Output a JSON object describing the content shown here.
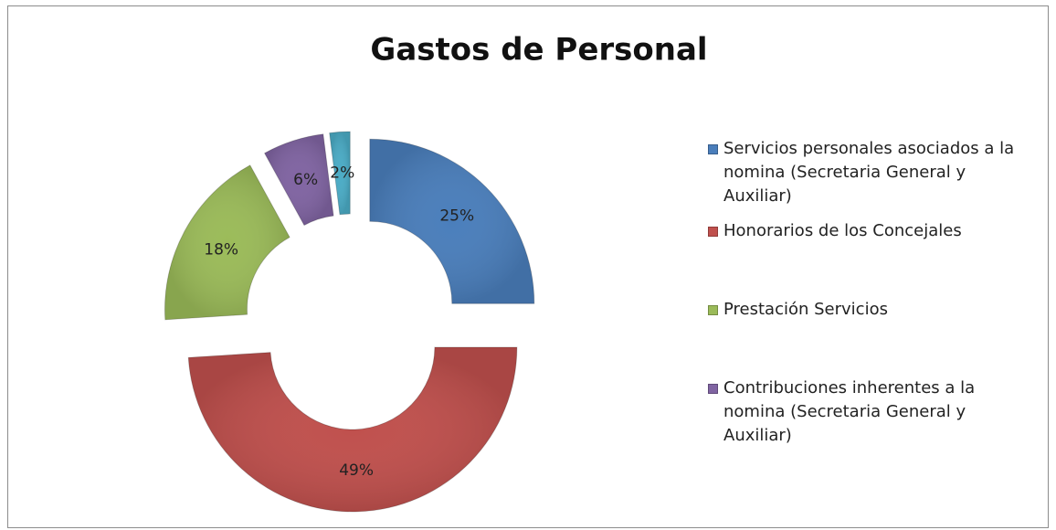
{
  "chart_data": {
    "type": "doughnut",
    "title": "Gastos de Personal",
    "categories": [
      "Servicios personales asociados a la nomina (Secretaria General y Auxiliar)",
      "Honorarios de los Concejales",
      "Prestación Servicios",
      "Contribuciones inherentes a la nomina (Secretaria General y Auxiliar)",
      null
    ],
    "values": [
      25,
      49,
      18,
      6,
      2
    ],
    "value_labels": [
      "25%",
      "49%",
      "18%",
      "6%",
      "2%"
    ],
    "colors": [
      "#4a7ebb",
      "#c0504d",
      "#9bbb59",
      "#8064a2",
      "#4bacc6"
    ],
    "legend": "right"
  }
}
